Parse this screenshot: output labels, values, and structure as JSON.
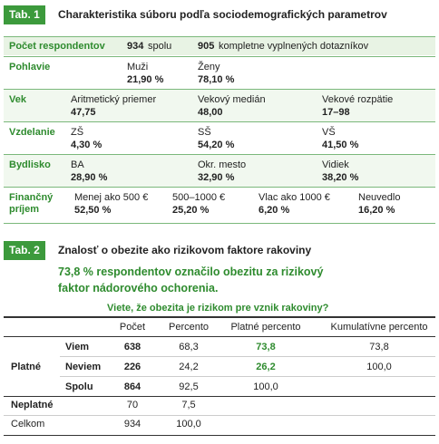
{
  "tab1": {
    "label": "Tab. 1",
    "title": "Charakteristika súboru podľa sociodemografických parametrov",
    "respondents": {
      "label": "Počet respondentov",
      "total": {
        "value": "934",
        "text": "spolu"
      },
      "complete": {
        "value": "905",
        "text": "kompletne vyplnených dotazníkov"
      }
    },
    "rows": [
      {
        "label": "Pohlavie",
        "cells": [
          [
            "Muži",
            "21,90 %"
          ],
          [
            "Ženy",
            "78,10 %"
          ]
        ]
      },
      {
        "label": "Vek",
        "cells": [
          [
            "Aritmetický priemer",
            "47,75"
          ],
          [
            "Vekový medián",
            "48,00"
          ],
          [
            "Vekové rozpätie",
            "17–98"
          ]
        ]
      },
      {
        "label": "Vzdelanie",
        "cells": [
          [
            "ZŠ",
            "4,30 %"
          ],
          [
            "SŠ",
            "54,20 %"
          ],
          [
            "VŠ",
            "41,50 %"
          ]
        ]
      },
      {
        "label": "Bydlisko",
        "cells": [
          [
            "BA",
            "28,90 %"
          ],
          [
            "Okr. mesto",
            "32,90 %"
          ],
          [
            "Vidiek",
            "38,20 %"
          ]
        ]
      },
      {
        "label": "Finančný príjem",
        "cells": [
          [
            "Menej ako 500 €",
            "52,50 %"
          ],
          [
            "500–1000 €",
            "25,20 %"
          ],
          [
            "Vlac ako 1000 €",
            "6,20 %"
          ],
          [
            "Neuvedlo",
            "16,20 %"
          ]
        ]
      }
    ]
  },
  "tab2": {
    "label": "Tab. 2",
    "title": "Znalosť o obezite ako rizikovom faktore rakoviny",
    "finding": "73,8 % respondentov označilo obezitu za rizikový faktor nádorového ochorenia.",
    "question": "Viete, že obezita je rizikom pre vznik rakoviny?",
    "columns": [
      "Počet",
      "Percento",
      "Platné percento",
      "Kumulatívne percento"
    ],
    "groups": [
      {
        "label": "Platné",
        "rows": [
          {
            "label": "Viem",
            "values": [
              "638",
              "68,3",
              "73,8",
              "73,8"
            ]
          },
          {
            "label": "Neviem",
            "values": [
              "226",
              "24,2",
              "26,2",
              "100,0"
            ]
          },
          {
            "label": "Spolu",
            "values": [
              "864",
              "92,5",
              "100,0"
            ]
          }
        ]
      },
      {
        "label": "Neplatné",
        "values": [
          "70",
          "7,5"
        ]
      },
      {
        "label": "Celkom",
        "values": [
          "934",
          "100,0"
        ]
      }
    ]
  }
}
